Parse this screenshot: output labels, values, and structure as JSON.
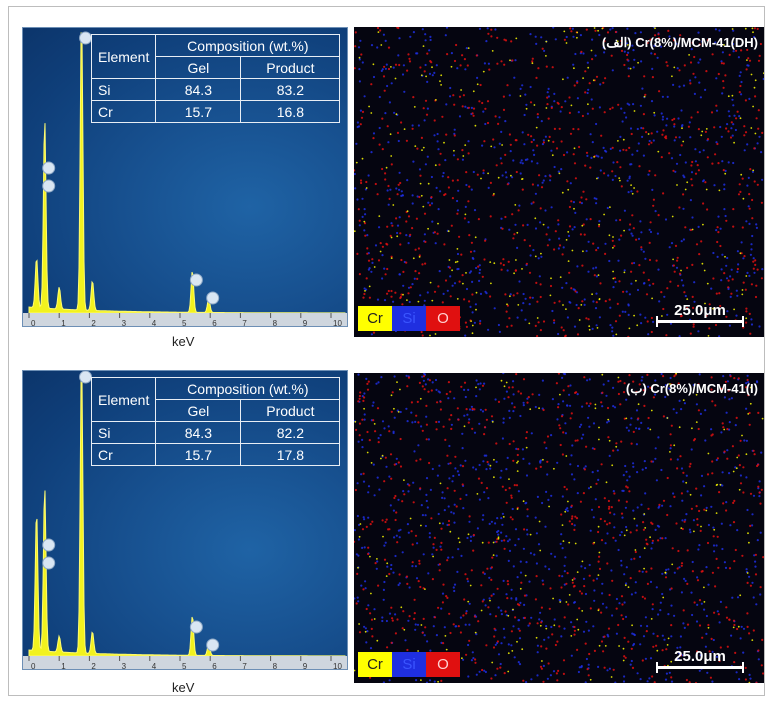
{
  "panels": [
    {
      "table": {
        "header_element": "Element",
        "header_composition": "Composition (wt.%)",
        "sub_gel": "Gel",
        "sub_product": "Product",
        "rows": [
          {
            "element": "Si",
            "gel": "84.3",
            "product": "83.2"
          },
          {
            "element": "Cr",
            "gel": "15.7",
            "product": "16.8"
          }
        ]
      },
      "axis_label": "keV",
      "ticks": [
        "0",
        "1",
        "2",
        "3",
        "4",
        "5",
        "6",
        "7",
        "8",
        "9",
        "10"
      ],
      "map_title": "(الف) Cr(8%)/MCM-41(DH)",
      "legend": [
        "Cr",
        "Si",
        "O"
      ],
      "scale_label": "25.0μm"
    },
    {
      "table": {
        "header_element": "Element",
        "header_composition": "Composition (wt.%)",
        "sub_gel": "Gel",
        "sub_product": "Product",
        "rows": [
          {
            "element": "Si",
            "gel": "84.3",
            "product": "82.2"
          },
          {
            "element": "Cr",
            "gel": "15.7",
            "product": "17.8"
          }
        ]
      },
      "axis_label": "keV",
      "ticks": [
        "0",
        "1",
        "2",
        "3",
        "4",
        "5",
        "6",
        "7",
        "8",
        "9",
        "10"
      ],
      "map_title": "(ب) Cr(8%)/MCM-41(I)",
      "legend": [
        "Cr",
        "Si",
        "O"
      ],
      "scale_label": "25.0μm"
    }
  ],
  "colors": {
    "spectrum": "#f2f21e",
    "eds_background": "#15508e",
    "map_background": "#050510",
    "legend_cr": "#ffff00",
    "legend_si": "#1f2fe0",
    "legend_o": "#e01010"
  }
}
